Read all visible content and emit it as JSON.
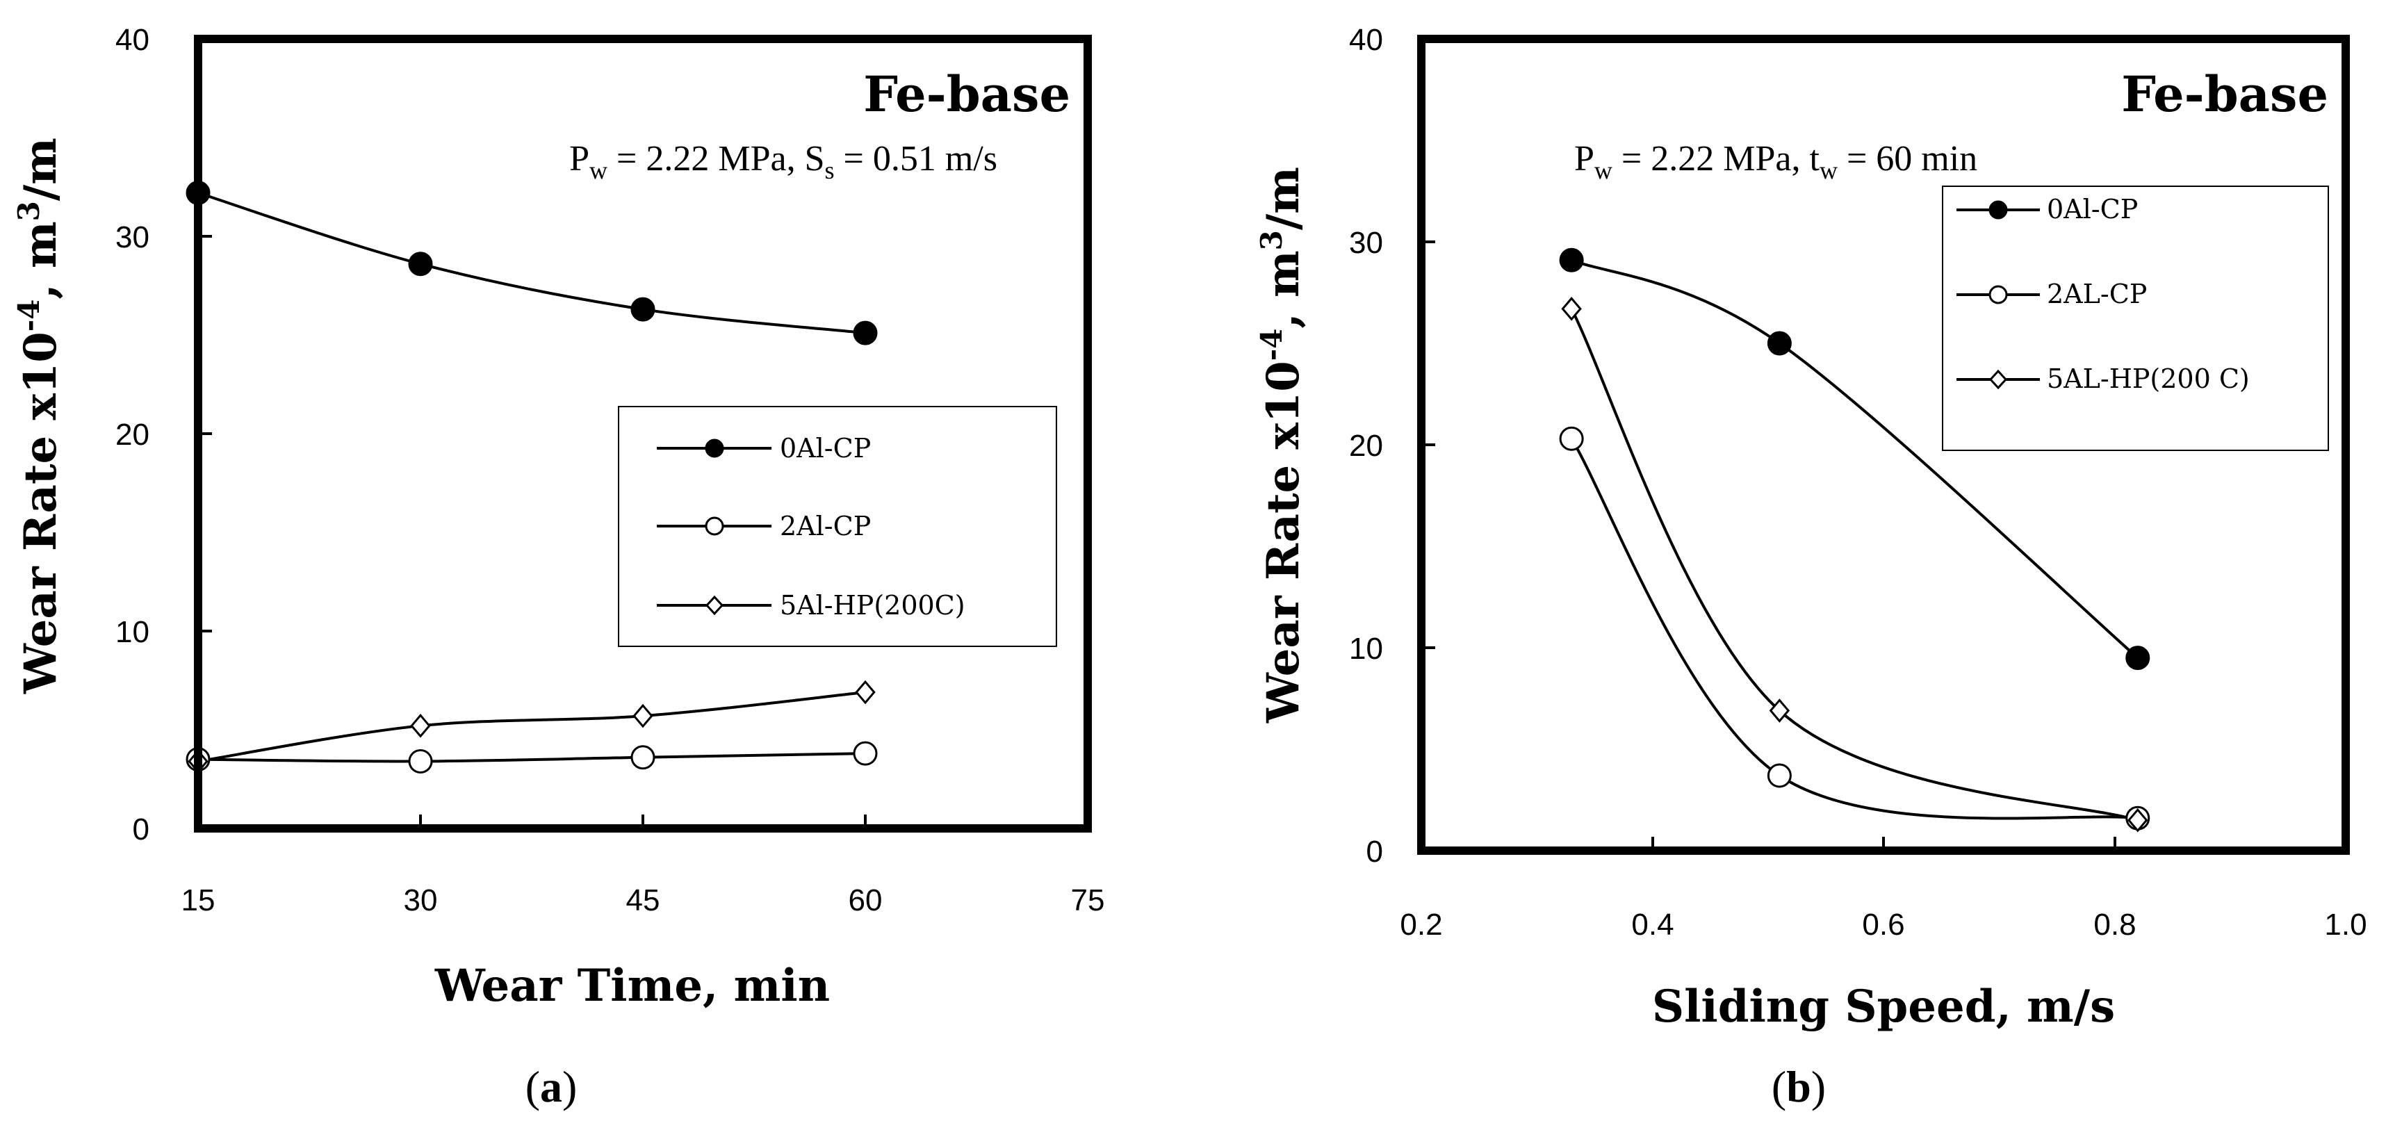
{
  "figure": {
    "panel_a_label": "a",
    "panel_b_label": "b"
  },
  "chart_data": [
    {
      "type": "line",
      "panel": "a",
      "base_label": "Fe-base",
      "conditions": {
        "pw_symbol": "P",
        "pw_sub": "w",
        "pw_value": " = 2.22 MPa, ",
        "second_symbol": "S",
        "second_sub": "s",
        "second_value": " = 0.51 m/s"
      },
      "xlabel": "Wear Time, min",
      "ylabel": "Wear Rate x10-4, m3/m",
      "ylabel_parts": {
        "main": "Wear Rate x10",
        "exp": "-4",
        "mid": ", m",
        "exp2": "3",
        "end": "/m"
      },
      "xlim": [
        15,
        75
      ],
      "ylim": [
        0,
        40
      ],
      "xticks": [
        15,
        30,
        45,
        60,
        75
      ],
      "yticks": [
        0,
        10,
        20,
        30,
        40
      ],
      "legend_position": "center-right",
      "series": [
        {
          "name": "0Al-CP",
          "marker": "filled-circle",
          "x": [
            15,
            30,
            45,
            60
          ],
          "y": [
            32.2,
            28.6,
            26.3,
            25.1
          ]
        },
        {
          "name": "2Al-CP",
          "marker": "open-circle",
          "x": [
            15,
            30,
            45,
            60
          ],
          "y": [
            3.5,
            3.4,
            3.6,
            3.8
          ]
        },
        {
          "name": "5Al-HP(200C)",
          "marker": "open-diamond",
          "x": [
            15,
            30,
            45,
            60
          ],
          "y": [
            3.4,
            5.2,
            5.7,
            6.9
          ]
        }
      ]
    },
    {
      "type": "line",
      "panel": "b",
      "base_label": "Fe-base",
      "conditions": {
        "pw_symbol": "P",
        "pw_sub": "w",
        "pw_value": " = 2.22 MPa, ",
        "second_symbol": "t",
        "second_sub": "w",
        "second_value": " = 60 min"
      },
      "xlabel": "Sliding Speed, m/s",
      "ylabel": "Wear Rate x10-4, m3/m",
      "ylabel_parts": {
        "main": "Wear Rate x10",
        "exp": "-4",
        "mid": ", m",
        "exp2": "3",
        "end": "/m"
      },
      "xlim": [
        0.2,
        1.0
      ],
      "ylim": [
        0,
        40
      ],
      "xticks": [
        "0.2",
        "0.4",
        "0.6",
        "0.8",
        "1.0"
      ],
      "yticks": [
        0,
        10,
        20,
        30,
        40
      ],
      "legend_position": "top-right",
      "series": [
        {
          "name": "0Al-CP",
          "marker": "filled-circle",
          "x": [
            0.33,
            0.51,
            0.82
          ],
          "y": [
            29.1,
            25.0,
            9.5
          ]
        },
        {
          "name": "2AL-CP",
          "marker": "open-circle",
          "x": [
            0.33,
            0.51,
            0.82
          ],
          "y": [
            20.3,
            3.7,
            1.6
          ]
        },
        {
          "name": "5AL-HP(200 C)",
          "marker": "open-diamond",
          "x": [
            0.33,
            0.51,
            0.82
          ],
          "y": [
            26.7,
            6.9,
            1.5
          ]
        }
      ]
    }
  ]
}
